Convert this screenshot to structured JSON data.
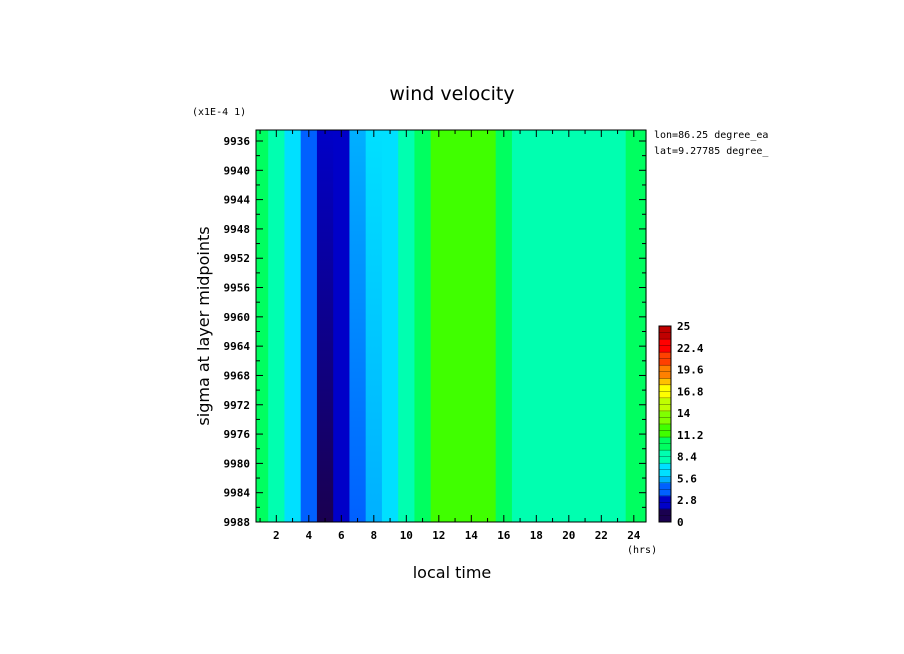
{
  "chart_data": {
    "type": "heatmap",
    "title": "wind velocity",
    "xlabel": "local time",
    "ylabel": "sigma at layer midpoints",
    "x_units": "(hrs)",
    "y_scale_label": "(x1E-4 1)",
    "annotations": [
      "lon=86.25 degree_ea",
      "lat=9.27785 degree_"
    ],
    "x_ticks": [
      2,
      4,
      6,
      8,
      10,
      12,
      14,
      16,
      18,
      20,
      22,
      24
    ],
    "y_ticks": [
      9936,
      9940,
      9944,
      9948,
      9952,
      9956,
      9960,
      9964,
      9968,
      9972,
      9976,
      9980,
      9984,
      9988
    ],
    "xlim": [
      0.75,
      24.75
    ],
    "ylim": [
      9988,
      9934.5
    ],
    "colorbar_ticks": [
      "0",
      "2.8",
      "5.6",
      "8.4",
      "11.2",
      "14",
      "16.8",
      "19.6",
      "22.4",
      "25"
    ],
    "colorbar_range": [
      0,
      25
    ],
    "colormap": [
      "#1a0050",
      "#0000c8",
      "#0060ff",
      "#00b0ff",
      "#00e0ff",
      "#00ffb0",
      "#00ff60",
      "#40ff00",
      "#80ff00",
      "#c0ff00",
      "#ffff00",
      "#ffc000",
      "#ff8000",
      "#ff4000",
      "#ff0000",
      "#c00000"
    ],
    "x": [
      0.75,
      1.5,
      2.5,
      3.5,
      4.5,
      5.5,
      6.5,
      7.5,
      8.5,
      9.5,
      10.5,
      11.5,
      12.5,
      13.5,
      14.5,
      15.5,
      16.5,
      17.5,
      18.5,
      19.5,
      20.5,
      21.5,
      22.5,
      23.5,
      24.75
    ],
    "y": [
      9934.5,
      9988
    ],
    "values": [
      [
        11.0,
        10.5,
        8.0,
        6.0,
        1.5,
        1.8,
        4.0,
        6.0,
        7.0,
        7.5,
        9.5,
        11.0,
        11.5,
        12.0,
        11.5,
        10.5,
        9.5,
        9.0,
        9.0,
        9.0,
        8.5,
        8.5,
        9.0,
        9.5,
        10.5
      ],
      [
        10.5,
        10.0,
        7.5,
        5.5,
        1.0,
        1.2,
        3.0,
        5.0,
        6.5,
        7.5,
        9.0,
        11.0,
        11.5,
        12.0,
        11.5,
        10.5,
        9.0,
        8.0,
        8.0,
        8.5,
        8.0,
        8.0,
        8.5,
        9.5,
        10.5
      ]
    ]
  }
}
